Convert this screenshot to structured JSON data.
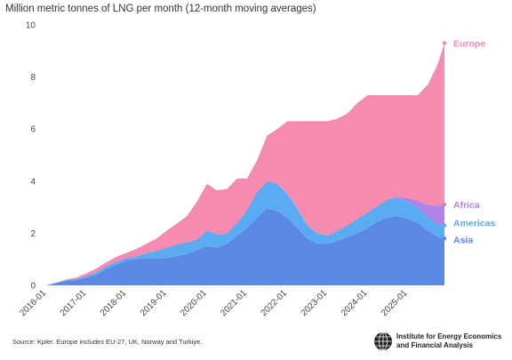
{
  "chart_data": {
    "type": "area",
    "stacked": true,
    "title": "Million metric tonnes of LNG per month (12-month moving averages)",
    "xlabel": "",
    "ylabel": "",
    "ylim": [
      0,
      10
    ],
    "yticks": [
      0,
      2,
      4,
      6,
      8,
      10
    ],
    "xticks": [
      "2016-01",
      "2017-01",
      "2018-01",
      "2019-01",
      "2020-01",
      "2021-01",
      "2022-01",
      "2023-01",
      "2024-01",
      "2025-01"
    ],
    "x_range": [
      "2016-01",
      "2025-12"
    ],
    "grid": false,
    "legend": "direct labels at right end of series",
    "x": [
      "2016-01",
      "2016-04",
      "2016-07",
      "2016-10",
      "2017-01",
      "2017-04",
      "2017-07",
      "2017-10",
      "2018-01",
      "2018-04",
      "2018-07",
      "2018-10",
      "2019-01",
      "2019-04",
      "2019-07",
      "2019-10",
      "2020-01",
      "2020-04",
      "2020-07",
      "2020-10",
      "2021-01",
      "2021-04",
      "2021-07",
      "2021-10",
      "2022-01",
      "2022-04",
      "2022-07",
      "2022-10",
      "2023-01",
      "2023-04",
      "2023-07",
      "2023-10",
      "2024-01",
      "2024-04",
      "2024-07",
      "2024-10",
      "2025-01",
      "2025-04",
      "2025-07",
      "2025-10",
      "2025-12"
    ],
    "series": [
      {
        "name": "Asia",
        "color": "#5b87e5",
        "values": [
          0.0,
          0.1,
          0.18,
          0.2,
          0.28,
          0.4,
          0.62,
          0.8,
          0.95,
          1.0,
          1.05,
          1.02,
          1.05,
          1.12,
          1.2,
          1.35,
          1.5,
          1.45,
          1.6,
          1.9,
          2.2,
          2.6,
          2.95,
          2.85,
          2.6,
          2.2,
          1.8,
          1.6,
          1.6,
          1.7,
          1.85,
          2.0,
          2.2,
          2.45,
          2.6,
          2.65,
          2.55,
          2.4,
          2.1,
          1.85,
          1.8
        ]
      },
      {
        "name": "Americas",
        "color": "#5aabf2",
        "values": [
          0.0,
          0.0,
          0.02,
          0.05,
          0.08,
          0.1,
          0.12,
          0.1,
          0.1,
          0.1,
          0.2,
          0.3,
          0.4,
          0.45,
          0.45,
          0.4,
          0.6,
          0.5,
          0.4,
          0.5,
          0.7,
          1.0,
          1.05,
          1.05,
          0.9,
          0.75,
          0.5,
          0.4,
          0.3,
          0.4,
          0.45,
          0.55,
          0.6,
          0.6,
          0.7,
          0.7,
          0.65,
          0.6,
          0.5,
          0.5,
          0.5
        ]
      },
      {
        "name": "Africa",
        "color": "#b183e6",
        "values": [
          0.0,
          0.0,
          0.0,
          0.0,
          0.0,
          0.0,
          0.0,
          0.0,
          0.0,
          0.0,
          0.0,
          0.0,
          0.0,
          0.0,
          0.0,
          0.0,
          0.0,
          0.0,
          0.0,
          0.0,
          0.0,
          0.0,
          0.0,
          0.0,
          0.0,
          0.0,
          0.0,
          0.0,
          0.0,
          0.0,
          0.0,
          0.0,
          0.0,
          0.0,
          0.0,
          0.05,
          0.15,
          0.25,
          0.5,
          0.7,
          0.8
        ]
      },
      {
        "name": "Europe",
        "color": "#f78aaf",
        "values": [
          0.0,
          0.0,
          0.03,
          0.05,
          0.1,
          0.15,
          0.15,
          0.2,
          0.2,
          0.3,
          0.35,
          0.48,
          0.65,
          0.8,
          1.0,
          1.45,
          1.8,
          1.7,
          1.7,
          1.7,
          1.2,
          1.2,
          1.75,
          2.1,
          2.8,
          3.35,
          4.0,
          4.3,
          4.4,
          4.3,
          4.3,
          4.45,
          4.5,
          4.25,
          4.0,
          3.9,
          3.95,
          4.05,
          4.6,
          5.45,
          6.2
        ]
      }
    ],
    "label_y": {
      "Europe": 9.3,
      "Africa": 3.1,
      "Americas": 2.4,
      "Asia": 1.75
    }
  },
  "footer": {
    "source": "Source: Kpler. Europe includes EU-27, UK, Norway and Turkiye.",
    "logo_line1": "Institute for Energy Economics",
    "logo_line2": "and Financial Analysis",
    "logo_icon": "globe-icon"
  }
}
